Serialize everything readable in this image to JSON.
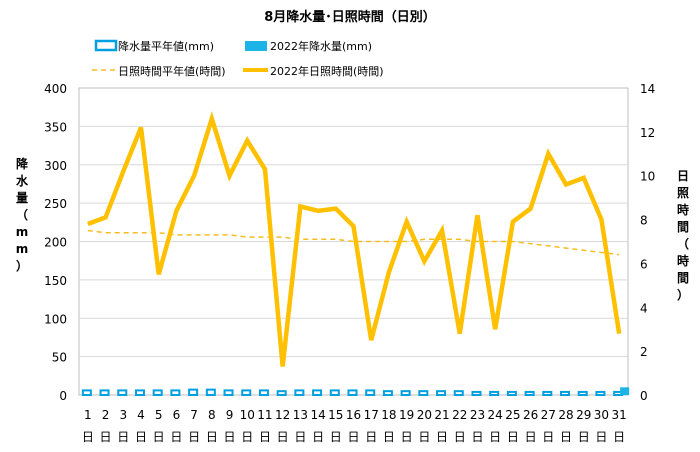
{
  "chart_data": {
    "type": "bar+line",
    "title": "8月降水量･日照時間（日別）",
    "left_axis": {
      "label": "降水量（mm）",
      "min": 0,
      "max": 400,
      "ticks": [
        0,
        50,
        100,
        150,
        200,
        250,
        300,
        350,
        400
      ]
    },
    "right_axis": {
      "label": "日照時間（時間）",
      "min": 0,
      "max": 14,
      "ticks": [
        0,
        2,
        4,
        6,
        8,
        10,
        12,
        14
      ]
    },
    "categories": [
      "1",
      "2",
      "3",
      "4",
      "5",
      "6",
      "7",
      "8",
      "9",
      "10",
      "11",
      "12",
      "13",
      "14",
      "15",
      "16",
      "17",
      "18",
      "19",
      "20",
      "21",
      "22",
      "23",
      "24",
      "25",
      "26",
      "27",
      "28",
      "29",
      "30",
      "31"
    ],
    "category_suffix": "日",
    "grid": true,
    "legend_position": "top",
    "series": [
      {
        "name": "降水量平年値(mm)",
        "kind": "bar-outline",
        "axis": "left",
        "color": "#00a0e0",
        "values": [
          6,
          6,
          6,
          6,
          6,
          6,
          7,
          7,
          6,
          6,
          6,
          5,
          6,
          6,
          6,
          6,
          6,
          5,
          5,
          5,
          5,
          5,
          4,
          4,
          4,
          4,
          4,
          4,
          4,
          4,
          4
        ]
      },
      {
        "name": "2022年降水量(mm)",
        "kind": "bar",
        "axis": "left",
        "color": "#1cb4e6",
        "values": [
          0,
          0,
          0,
          0,
          0,
          0,
          0,
          0,
          0,
          0,
          0,
          0,
          0,
          0,
          0,
          0,
          0,
          0,
          0,
          0,
          0,
          0,
          0,
          0,
          0,
          0,
          0,
          0,
          0,
          0,
          10
        ]
      },
      {
        "name": "日照時間平年値(時間)",
        "kind": "line-dashed",
        "axis": "right",
        "color": "#f5bd1f",
        "values": [
          7.5,
          7.4,
          7.4,
          7.4,
          7.4,
          7.3,
          7.3,
          7.3,
          7.3,
          7.2,
          7.2,
          7.2,
          7.1,
          7.1,
          7.1,
          7.0,
          7.0,
          7.0,
          7.0,
          7.1,
          7.1,
          7.1,
          7.0,
          7.0,
          7.0,
          6.9,
          6.8,
          6.7,
          6.6,
          6.5,
          6.4
        ]
      },
      {
        "name": "2022年日照時間(時間)",
        "kind": "line",
        "axis": "right",
        "color": "#ffc000",
        "values": [
          7.8,
          8.1,
          10.2,
          12.2,
          5.5,
          8.4,
          10.0,
          12.6,
          10.0,
          11.6,
          10.3,
          1.3,
          8.6,
          8.4,
          8.5,
          7.7,
          2.5,
          5.6,
          7.9,
          6.1,
          7.5,
          2.8,
          8.2,
          3.0,
          7.9,
          8.5,
          11.0,
          9.6,
          9.9,
          8.0,
          2.8
        ]
      }
    ]
  }
}
